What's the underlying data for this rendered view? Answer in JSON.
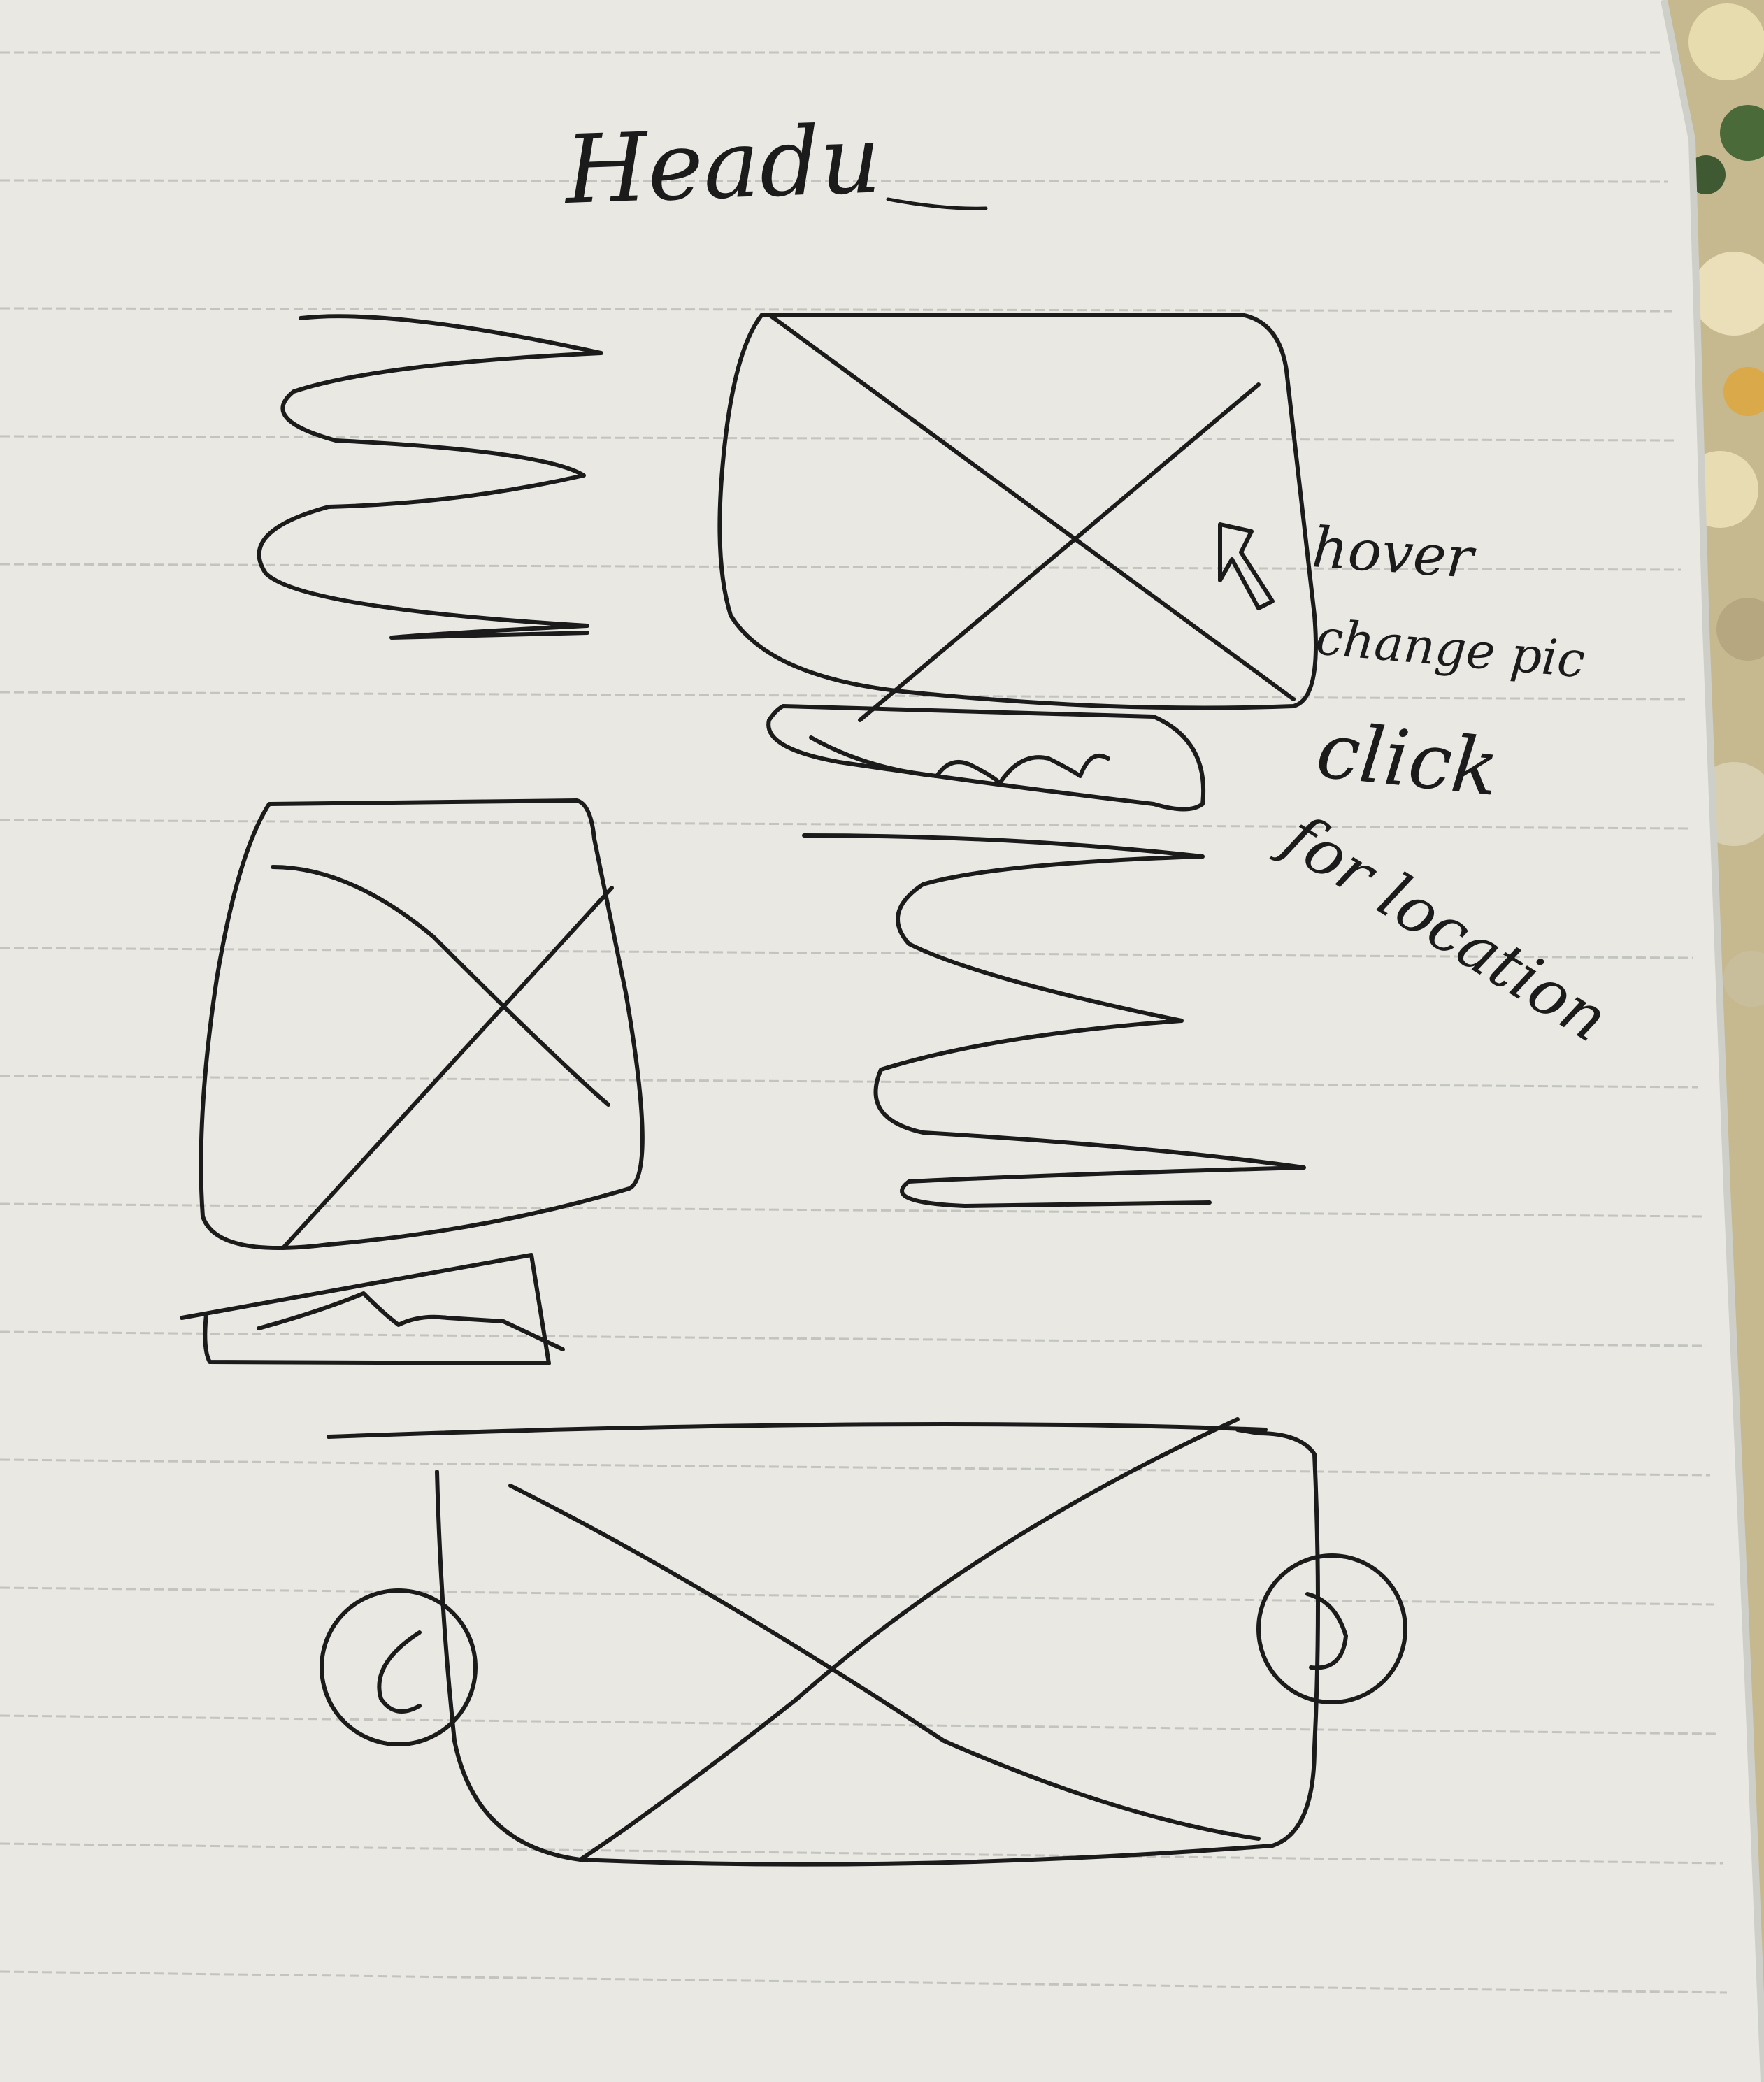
{
  "notebook": {
    "heading": "Headu",
    "annotations": [
      {
        "key": "hover",
        "text": "hover"
      },
      {
        "key": "change",
        "text": "change pic"
      },
      {
        "key": "click",
        "text": "click"
      },
      {
        "key": "location",
        "text": "for location"
      }
    ]
  },
  "colors": {
    "paper": "#e9e8e3",
    "ink": "#1b1b1b",
    "rule_line": "#c3c3bf",
    "fabric_cream": "#e6dcae",
    "fabric_leaf": "#3f5a33"
  },
  "icons": [
    "cursor-arrow-icon",
    "chevron-left-icon",
    "chevron-right-icon"
  ]
}
